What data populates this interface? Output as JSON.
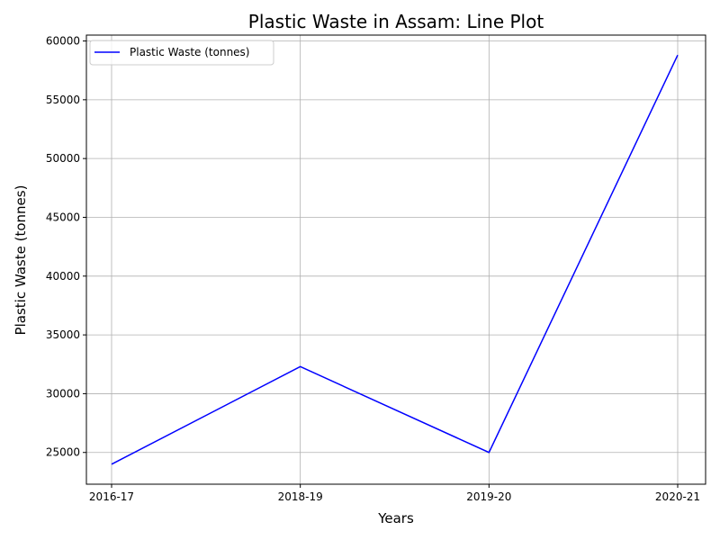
{
  "chart_data": {
    "type": "line",
    "title": "Plastic Waste in Assam: Line Plot",
    "xlabel": "Years",
    "ylabel": "Plastic Waste (tonnes)",
    "categories": [
      "2016-17",
      "2018-19",
      "2019-20",
      "2020-21"
    ],
    "series": [
      {
        "name": "Plastic Waste (tonnes)",
        "values": [
          24000,
          32300,
          25000,
          58800
        ],
        "color": "#0000ff"
      }
    ],
    "yticks": [
      25000,
      30000,
      35000,
      40000,
      45000,
      50000,
      55000,
      60000
    ],
    "ylim": [
      22300,
      60500
    ],
    "grid": true,
    "legend_position": "top-left"
  }
}
